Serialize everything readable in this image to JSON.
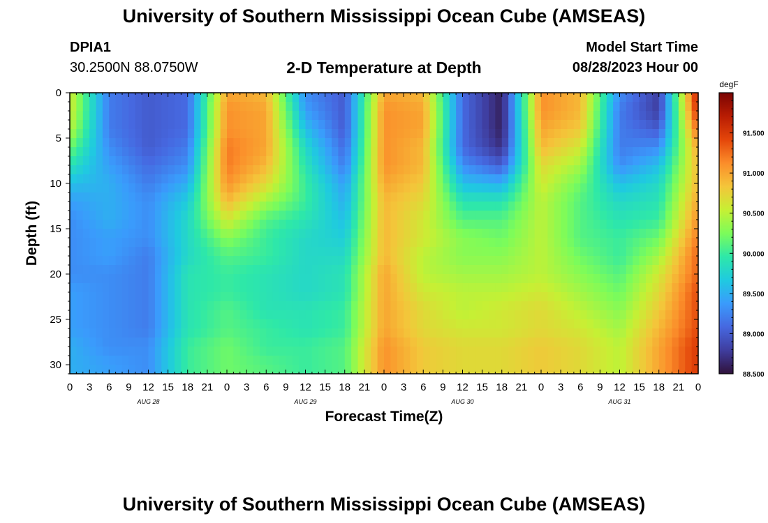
{
  "header": {
    "title": "University of Southern Mississippi Ocean Cube (AMSEAS)",
    "station_id": "DPIA1",
    "coordinates": "30.2500N  88.0750W",
    "subtitle": "2-D Temperature at Depth",
    "model_start_label": "Model Start Time",
    "model_start_value": "08/28/2023 Hour 00"
  },
  "footer": {
    "title": "University of Southern Mississippi Ocean Cube (AMSEAS)"
  },
  "colors": {
    "palette": [
      "#30123b",
      "#3f3d9e",
      "#4668e0",
      "#3a9bfc",
      "#1fcae0",
      "#2ee8a8",
      "#7cfc5a",
      "#c6f034",
      "#f4c53a",
      "#fb8d2a",
      "#e4460a",
      "#b81c03",
      "#7a0403"
    ]
  },
  "chart_data": {
    "type": "heatmap",
    "xlabel": "Forecast Time(Z)",
    "ylabel": "Depth (ft)",
    "x_unit": "hours since 08/28/2023 00Z",
    "xlim": [
      0,
      96
    ],
    "ylim": [
      0,
      31
    ],
    "y_inverted": true,
    "x_ticks": [
      0,
      3,
      6,
      9,
      12,
      15,
      18,
      21,
      24,
      27,
      30,
      33,
      36,
      39,
      42,
      45,
      48,
      51,
      54,
      57,
      60,
      63,
      66,
      69,
      72,
      75,
      78,
      81,
      84,
      87,
      90,
      93,
      96
    ],
    "x_tick_labels": [
      "0",
      "3",
      "6",
      "9",
      "12",
      "15",
      "18",
      "21",
      "0",
      "3",
      "6",
      "9",
      "12",
      "15",
      "18",
      "21",
      "0",
      "3",
      "6",
      "9",
      "12",
      "15",
      "18",
      "21",
      "0",
      "3",
      "6",
      "9",
      "12",
      "15",
      "18",
      "21",
      "0"
    ],
    "day_labels": [
      {
        "x": 12,
        "label": "AUG 28"
      },
      {
        "x": 36,
        "label": "AUG 29"
      },
      {
        "x": 60,
        "label": "AUG 30"
      },
      {
        "x": 84,
        "label": "AUG 31"
      }
    ],
    "y_ticks": [
      0,
      5,
      10,
      15,
      20,
      25,
      30
    ],
    "y_tick_labels": [
      "0",
      "5",
      "10",
      "15",
      "20",
      "25",
      "30"
    ],
    "colorbar": {
      "unit": "degF",
      "min": 88.5,
      "max": 92.0,
      "ticks": [
        88.5,
        89.0,
        89.5,
        90.0,
        90.5,
        91.0,
        91.5
      ],
      "tick_labels": [
        "88.500",
        "89.000",
        "89.500",
        "90.000",
        "90.500",
        "91.000",
        "91.500"
      ]
    },
    "depths_ft": [
      0,
      2,
      4,
      6,
      8,
      10,
      12,
      14,
      16,
      18,
      20,
      22,
      24,
      26,
      28,
      30
    ],
    "hours": [
      0,
      6,
      12,
      18,
      24,
      30,
      36,
      42,
      48,
      54,
      60,
      66,
      72,
      78,
      84,
      90,
      96
    ],
    "temperature_degF": [
      [
        90.6,
        89.2,
        89.0,
        89.1,
        91.0,
        90.9,
        89.3,
        89.0,
        91.0,
        90.9,
        89.1,
        88.6,
        91.1,
        90.9,
        89.3,
        88.8,
        91.7
      ],
      [
        90.6,
        89.2,
        89.0,
        89.1,
        91.1,
        91.0,
        89.4,
        89.0,
        91.1,
        91.0,
        89.1,
        88.6,
        91.1,
        90.9,
        89.2,
        88.8,
        91.6
      ],
      [
        90.5,
        89.2,
        89.0,
        89.1,
        91.1,
        91.0,
        89.6,
        89.0,
        91.1,
        91.0,
        89.1,
        88.6,
        91.0,
        90.8,
        89.2,
        89.0,
        91.3
      ],
      [
        90.2,
        89.3,
        89.0,
        89.2,
        91.2,
        91.0,
        89.8,
        89.1,
        91.1,
        90.9,
        89.1,
        88.7,
        90.9,
        90.6,
        89.2,
        89.3,
        91.0
      ],
      [
        89.9,
        89.4,
        89.1,
        89.3,
        91.2,
        90.9,
        89.9,
        89.2,
        91.1,
        90.9,
        89.3,
        89.0,
        90.7,
        90.4,
        89.3,
        89.6,
        90.9
      ],
      [
        89.6,
        89.5,
        89.2,
        89.5,
        91.1,
        90.7,
        90.0,
        89.4,
        91.0,
        90.8,
        89.6,
        89.5,
        90.6,
        90.2,
        89.6,
        89.8,
        90.9
      ],
      [
        89.4,
        89.5,
        89.3,
        89.7,
        90.9,
        90.4,
        90.0,
        89.5,
        90.9,
        90.7,
        89.9,
        89.9,
        90.5,
        90.1,
        89.8,
        89.9,
        91.0
      ],
      [
        89.3,
        89.5,
        89.3,
        89.8,
        90.6,
        90.1,
        89.9,
        89.6,
        90.9,
        90.6,
        90.1,
        90.1,
        90.5,
        90.1,
        89.9,
        90.0,
        91.1
      ],
      [
        89.3,
        89.4,
        89.3,
        89.8,
        90.3,
        90.0,
        89.8,
        89.7,
        90.9,
        90.6,
        90.3,
        90.2,
        90.5,
        90.1,
        90.0,
        90.2,
        91.2
      ],
      [
        89.3,
        89.4,
        89.2,
        89.8,
        90.1,
        90.0,
        89.8,
        89.8,
        90.9,
        90.5,
        90.3,
        90.3,
        90.5,
        90.2,
        90.0,
        90.4,
        91.3
      ],
      [
        89.3,
        89.3,
        89.2,
        89.9,
        90.0,
        89.9,
        89.8,
        89.9,
        91.0,
        90.5,
        90.4,
        90.4,
        90.5,
        90.3,
        90.1,
        90.6,
        91.3
      ],
      [
        89.4,
        89.3,
        89.2,
        89.9,
        90.0,
        89.9,
        89.8,
        89.9,
        91.0,
        90.6,
        90.5,
        90.5,
        90.6,
        90.4,
        90.2,
        90.7,
        91.4
      ],
      [
        89.4,
        89.3,
        89.2,
        89.9,
        90.1,
        89.9,
        89.9,
        90.0,
        91.0,
        90.7,
        90.5,
        90.6,
        90.7,
        90.5,
        90.3,
        90.8,
        91.4
      ],
      [
        89.4,
        89.3,
        89.2,
        89.9,
        90.1,
        90.0,
        89.9,
        90.0,
        91.0,
        90.7,
        90.6,
        90.6,
        90.7,
        90.6,
        90.4,
        90.9,
        91.4
      ],
      [
        89.5,
        89.3,
        89.3,
        90.0,
        90.2,
        90.0,
        90.0,
        90.1,
        91.1,
        90.8,
        90.7,
        90.7,
        90.8,
        90.7,
        90.5,
        91.0,
        91.5
      ],
      [
        89.5,
        89.4,
        89.3,
        90.0,
        90.2,
        90.1,
        90.0,
        90.1,
        91.1,
        90.8,
        90.7,
        90.7,
        90.8,
        90.7,
        90.5,
        91.0,
        91.5
      ]
    ]
  }
}
